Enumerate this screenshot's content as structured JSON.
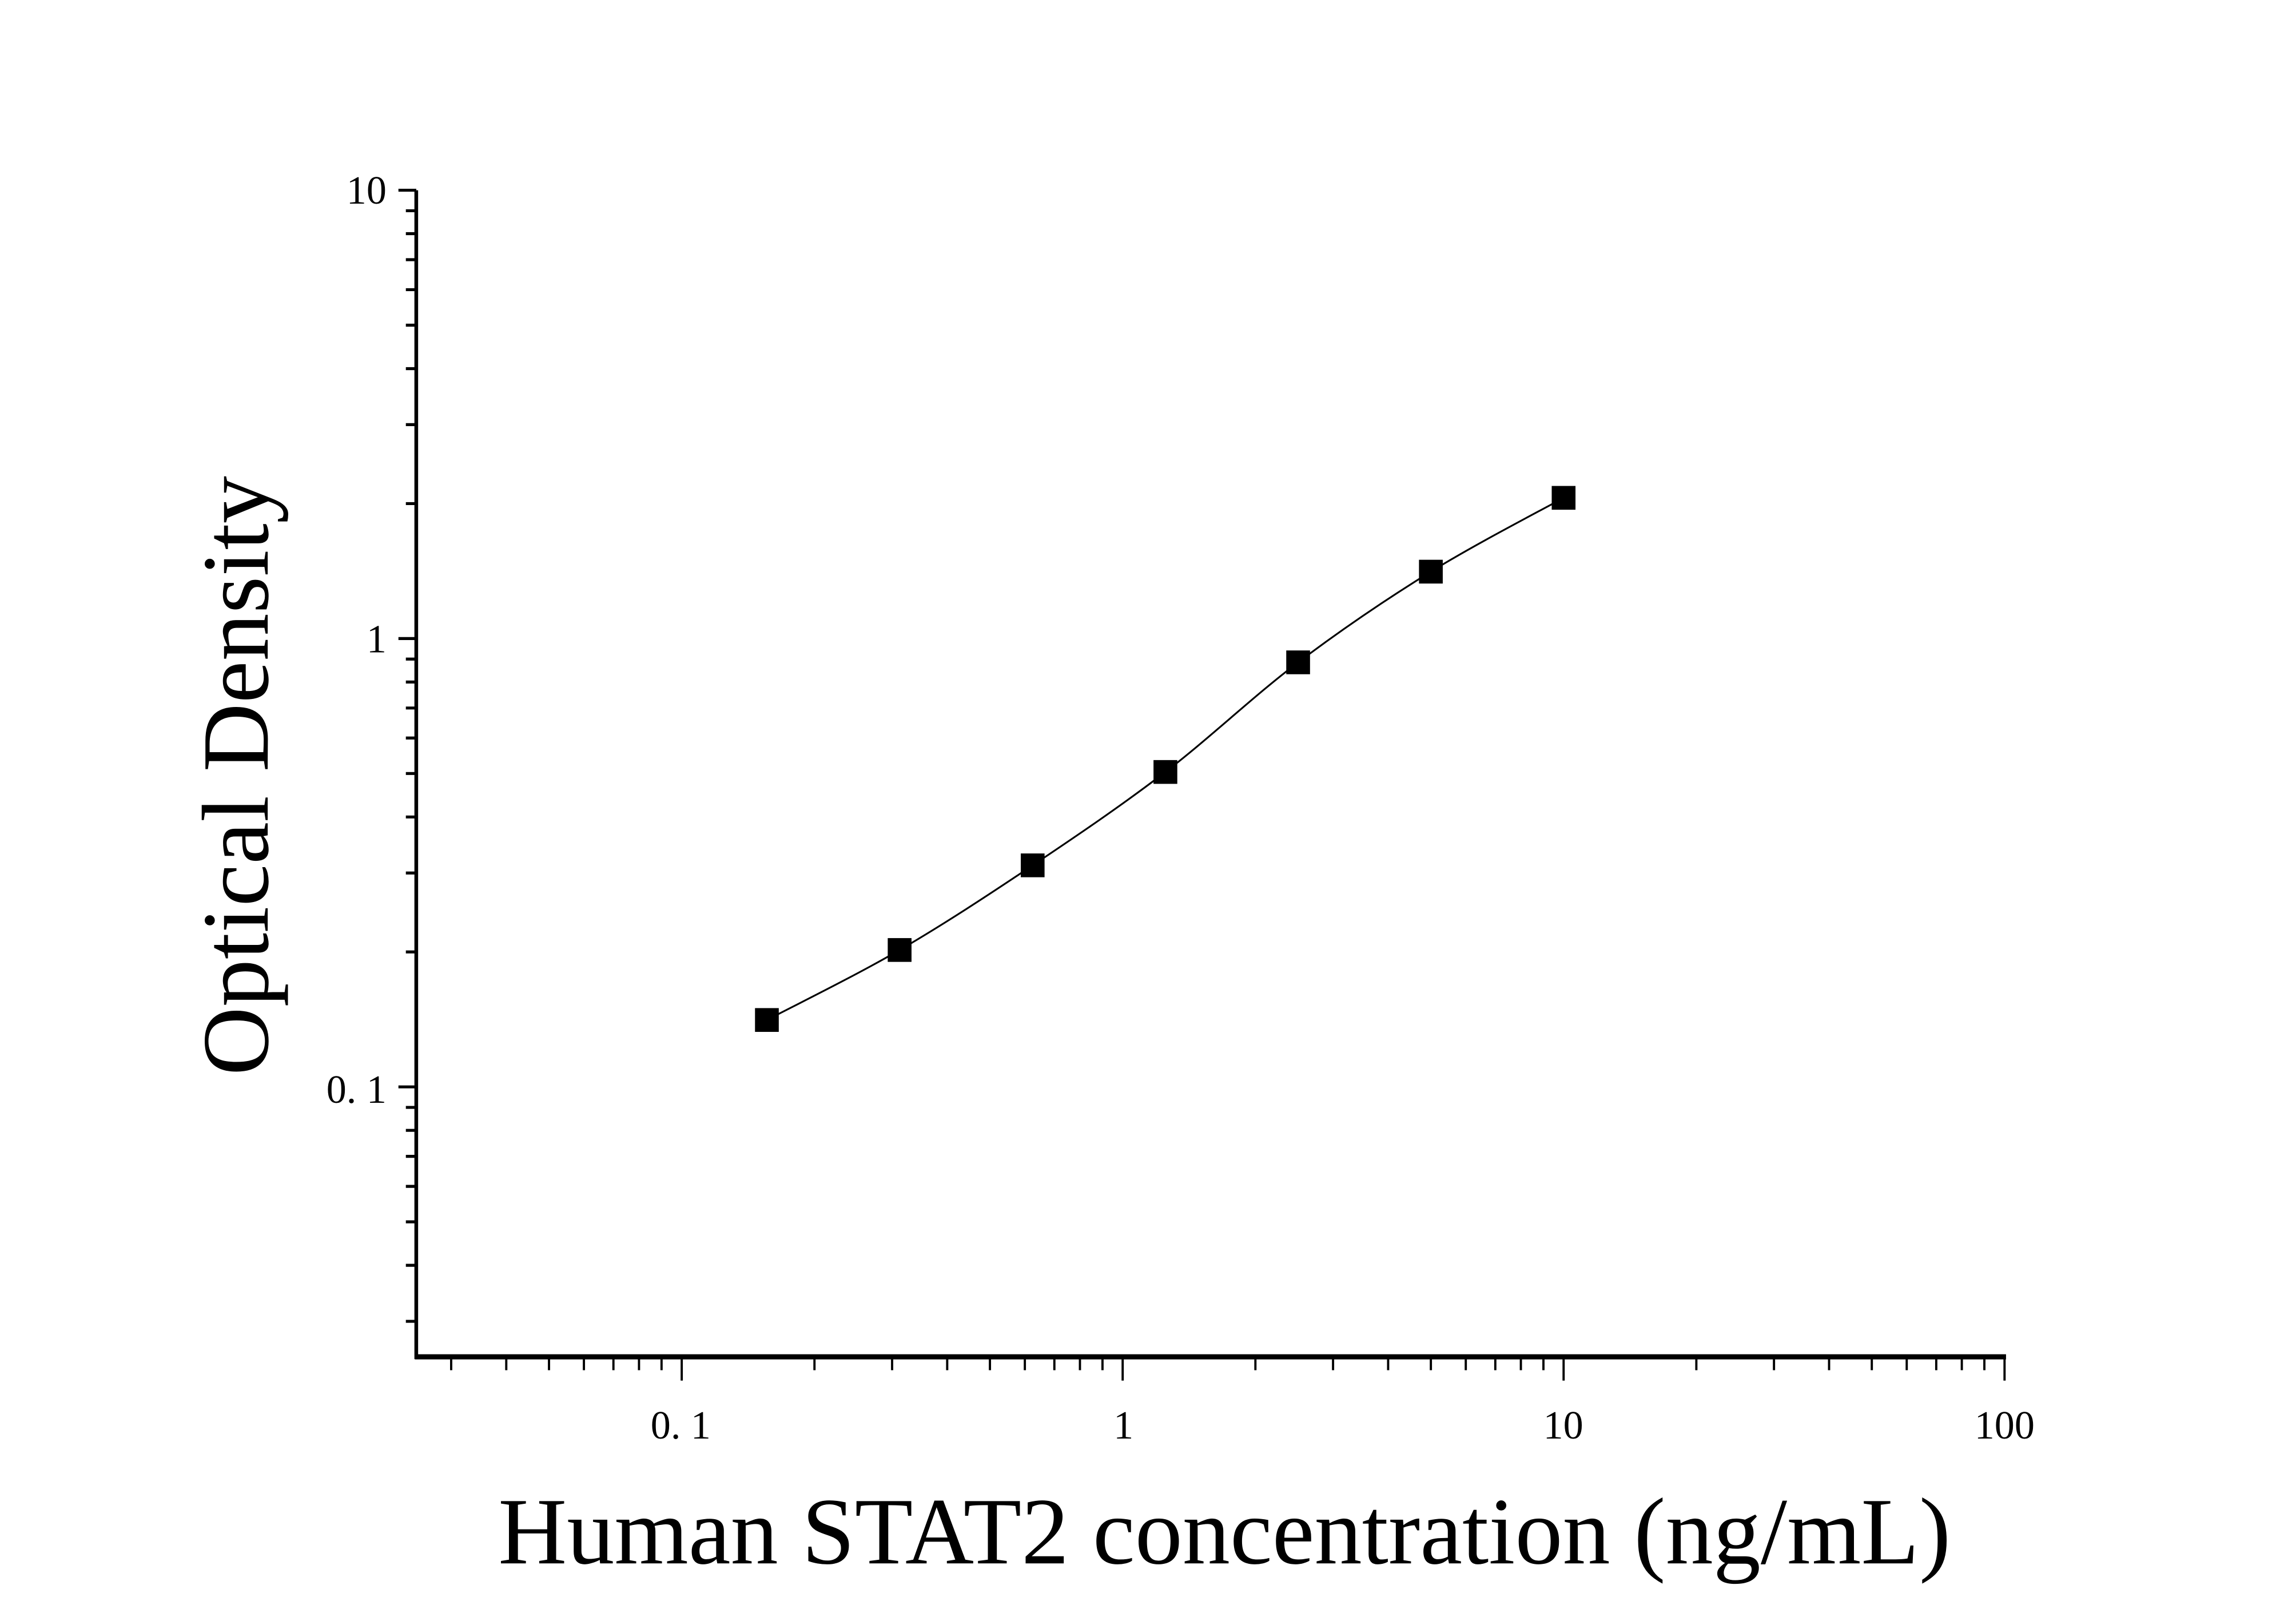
{
  "chart_data": {
    "type": "scatter",
    "title": "",
    "xlabel": "Human STAT2 concentration (ng/mL)",
    "ylabel": "Optical Density",
    "x_scale": "log",
    "y_scale": "log",
    "xlim": [
      0.025,
      100
    ],
    "ylim": [
      0.025,
      10
    ],
    "x_ticks": [
      0.1,
      1,
      10,
      100
    ],
    "x_tick_labels": [
      "0. 1",
      "1",
      "10",
      "100"
    ],
    "y_ticks": [
      0.1,
      1,
      10
    ],
    "y_tick_labels": [
      "0. 1",
      "1",
      "10"
    ],
    "grid": false,
    "legend": "none",
    "marker": "square",
    "fit_curve": true,
    "color": "#000000",
    "series": [
      {
        "x": [
          0.156,
          0.312,
          0.625,
          1.25,
          2.5,
          5,
          10
        ],
        "y": [
          0.141,
          0.202,
          0.312,
          0.504,
          0.885,
          1.41,
          2.06
        ]
      }
    ]
  }
}
